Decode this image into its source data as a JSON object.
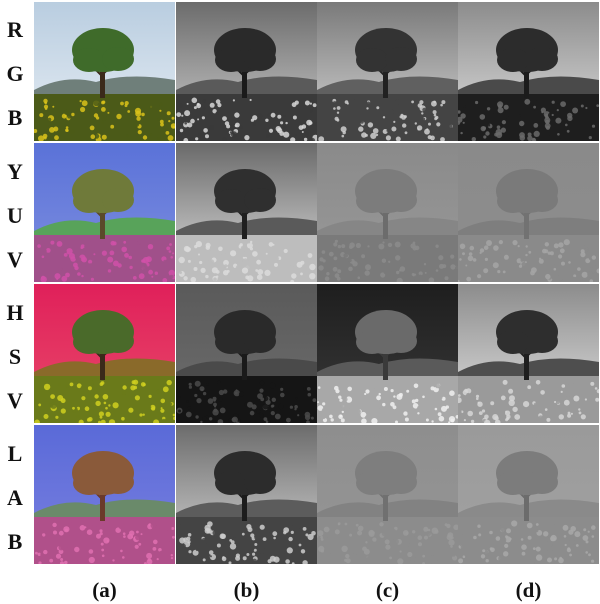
{
  "rows": [
    {
      "letters": [
        "R",
        "G",
        "B"
      ]
    },
    {
      "letters": [
        "Y",
        "U",
        "V"
      ]
    },
    {
      "letters": [
        "H",
        "S",
        "V"
      ]
    },
    {
      "letters": [
        "L",
        "A",
        "B"
      ]
    }
  ],
  "columns": [
    "(a)",
    "(b)",
    "(c)",
    "(d)"
  ]
}
